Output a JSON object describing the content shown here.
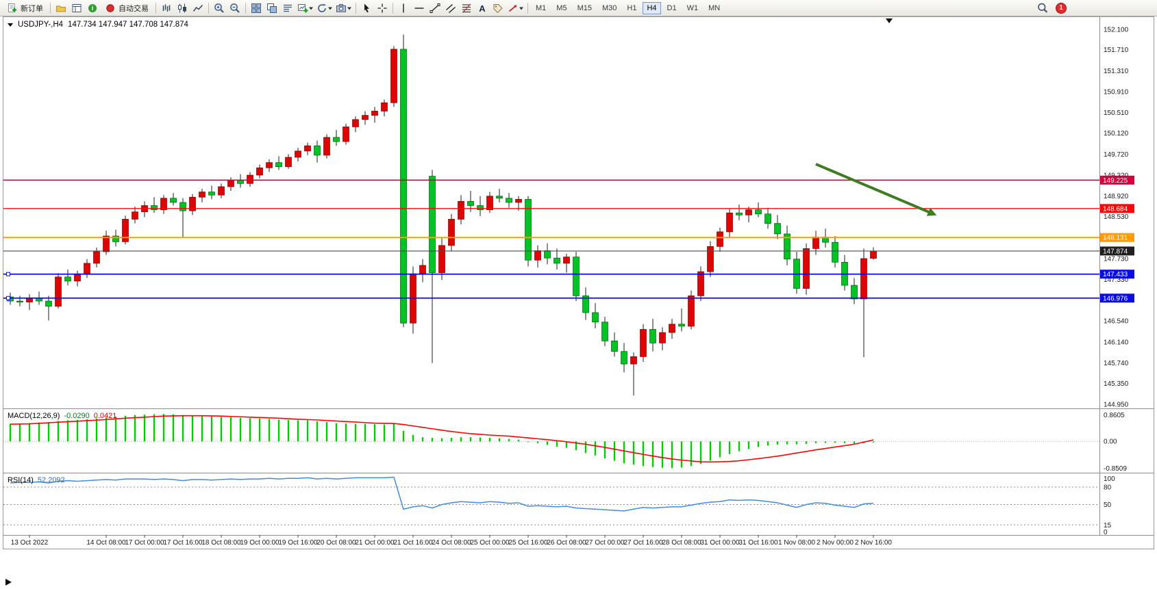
{
  "toolbar": {
    "buttons": [
      {
        "name": "new-order-button",
        "icon": "new-order",
        "label": "新订单"
      },
      {
        "type": "sep"
      },
      {
        "name": "profile-button",
        "icon": "profile"
      },
      {
        "name": "data-window-button",
        "icon": "data-window"
      },
      {
        "name": "info-button",
        "icon": "info"
      },
      {
        "name": "auto-trading-button",
        "icon": "auto-trading",
        "label": "自动交易"
      },
      {
        "type": "sep"
      },
      {
        "name": "bar-chart-button",
        "icon": "bar-chart"
      },
      {
        "name": "candlestick-chart-button",
        "icon": "candlestick"
      },
      {
        "name": "line-chart-button",
        "icon": "line-chart"
      },
      {
        "type": "sep"
      },
      {
        "name": "zoom-in-button",
        "icon": "zoom-in"
      },
      {
        "name": "zoom-out-button",
        "icon": "zoom-out"
      },
      {
        "type": "sep"
      },
      {
        "name": "tile-windows-button",
        "icon": "tile-windows"
      },
      {
        "name": "cascade-windows-button",
        "icon": "cascade"
      },
      {
        "name": "arrange-windows-button",
        "icon": "arrange"
      },
      {
        "name": "new-chart-button",
        "icon": "new-chart",
        "caret": true
      },
      {
        "name": "profiles-button",
        "icon": "cycle",
        "caret": true
      },
      {
        "name": "snapshot-button",
        "icon": "snapshot",
        "caret": true
      },
      {
        "type": "sep"
      },
      {
        "name": "cursor-button",
        "icon": "cursor"
      },
      {
        "name": "crosshair-button",
        "icon": "crosshair"
      },
      {
        "type": "sep"
      },
      {
        "name": "vertical-line-button",
        "icon": "vertical-line"
      },
      {
        "name": "horizontal-line-button",
        "icon": "horizontal-line"
      },
      {
        "name": "trendline-button",
        "icon": "trendline"
      },
      {
        "name": "equidistant-channel-button",
        "icon": "channel"
      },
      {
        "name": "fibonacci-button",
        "icon": "fibonacci"
      },
      {
        "name": "text-button",
        "icon": "text"
      },
      {
        "name": "text-label-button",
        "icon": "label"
      },
      {
        "name": "arrows-button",
        "icon": "arrows",
        "caret": true
      },
      {
        "type": "sep"
      },
      {
        "name": "timeframe-m1",
        "tf": "M1"
      },
      {
        "name": "timeframe-m5",
        "tf": "M5"
      },
      {
        "name": "timeframe-m15",
        "tf": "M15"
      },
      {
        "name": "timeframe-m30",
        "tf": "M30"
      },
      {
        "name": "timeframe-h1",
        "tf": "H1"
      },
      {
        "name": "timeframe-h4",
        "tf": "H4",
        "active": true
      },
      {
        "name": "timeframe-d1",
        "tf": "D1"
      },
      {
        "name": "timeframe-w1",
        "tf": "W1"
      },
      {
        "name": "timeframe-mn",
        "tf": "MN"
      }
    ],
    "right": [
      {
        "name": "search-button",
        "icon": "search"
      },
      {
        "name": "notification-badge",
        "label": "1"
      }
    ]
  },
  "symbol_header": {
    "symbol_period": "USDJPY-,H4",
    "ohlc": "147.734 147.947 147.708 147.874"
  },
  "indicators": {
    "macd": {
      "name": "MACD(12,26,9)",
      "value_main": "-0.0290",
      "value_signal": "0.0421",
      "scale_labels": [
        "0.8605",
        "0.00",
        "-0.8509"
      ]
    },
    "rsi": {
      "name": "RSI(14)",
      "value": "52.2092",
      "scale": [
        {
          "label": "100",
          "value": 100
        },
        {
          "label": "80",
          "value": 80
        },
        {
          "label": "50",
          "value": 50
        },
        {
          "label": "15",
          "value": 15
        },
        {
          "label": "0",
          "value": 0
        }
      ],
      "levels": [
        80,
        50,
        15
      ]
    }
  },
  "price_axis": {
    "labels": [
      "152.100",
      "151.710",
      "151.310",
      "150.910",
      "150.510",
      "150.120",
      "149.720",
      "149.320",
      "148.920",
      "148.530",
      "148.130",
      "147.730",
      "147.330",
      "146.940",
      "146.540",
      "146.140",
      "145.740",
      "145.350",
      "144.950"
    ]
  },
  "levels": [
    {
      "value": 149.225,
      "label": "149.225",
      "color": "#d1003c",
      "width": 1.6
    },
    {
      "value": 148.684,
      "label": "148.684",
      "color": "#f40808",
      "width": 1.4
    },
    {
      "value": 148.131,
      "label": "148.131",
      "color": "#ff9c00",
      "width": 2
    },
    {
      "value": 147.874,
      "label": "147.874",
      "color": "#4a4a4a",
      "badge": "#1f1f1f",
      "width": 1.2
    },
    {
      "value": 147.433,
      "label": "147.433",
      "color": "#0a0ae6",
      "width": 1.8,
      "handles": true
    },
    {
      "value": 146.976,
      "label": "146.976",
      "color": "#0a0ae6",
      "width": 1.8,
      "handles": true
    }
  ],
  "time_axis": {
    "labels": [
      {
        "text": "13 Oct 2022",
        "index": 2
      },
      {
        "text": "14 Oct 08:00",
        "index": 10
      },
      {
        "text": "17 Oct 00:00",
        "index": 14
      },
      {
        "text": "17 Oct 16:00",
        "index": 18
      },
      {
        "text": "18 Oct 08:00",
        "index": 22
      },
      {
        "text": "19 Oct 00:00",
        "index": 26
      },
      {
        "text": "19 Oct 16:00",
        "index": 30
      },
      {
        "text": "20 Oct 08:00",
        "index": 34
      },
      {
        "text": "21 Oct 00:00",
        "index": 38
      },
      {
        "text": "21 Oct 16:00",
        "index": 42
      },
      {
        "text": "24 Oct 08:00",
        "index": 46
      },
      {
        "text": "25 Oct 00:00",
        "index": 50
      },
      {
        "text": "25 Oct 16:00",
        "index": 54
      },
      {
        "text": "26 Oct 08:00",
        "index": 58
      },
      {
        "text": "27 Oct 00:00",
        "index": 62
      },
      {
        "text": "27 Oct 16:00",
        "index": 66
      },
      {
        "text": "28 Oct 08:00",
        "index": 70
      },
      {
        "text": "31 Oct 00:00",
        "index": 74
      },
      {
        "text": "31 Oct 16:00",
        "index": 78
      },
      {
        "text": "1 Nov 08:00",
        "index": 82
      },
      {
        "text": "2 Nov 00:00",
        "index": 86
      },
      {
        "text": "2 Nov 16:00",
        "index": 90
      }
    ]
  },
  "annotation_arrow": {
    "from_index": 84,
    "from_price": 149.53,
    "to_index": 96,
    "to_price": 148.6,
    "color": "#3c7d22"
  },
  "chart_data": {
    "type": "candlestick",
    "symbol": "USDJPY-",
    "period": "H4",
    "price_range_view": [
      144.9,
      152.28
    ],
    "bull_color": "#e00505",
    "bear_color": "#00c423",
    "wick_color": "#1c1c1c",
    "candles": [
      [
        147.0,
        147.08,
        146.85,
        146.92
      ],
      [
        146.92,
        147.02,
        146.82,
        146.9
      ],
      [
        146.9,
        147.05,
        146.75,
        146.98
      ],
      [
        146.98,
        147.1,
        146.85,
        146.92
      ],
      [
        146.92,
        147.02,
        146.55,
        146.82
      ],
      [
        146.82,
        147.45,
        146.78,
        147.38
      ],
      [
        147.38,
        147.52,
        147.22,
        147.3
      ],
      [
        147.3,
        147.5,
        147.2,
        147.44
      ],
      [
        147.44,
        147.72,
        147.36,
        147.64
      ],
      [
        147.64,
        147.94,
        147.56,
        147.86
      ],
      [
        147.86,
        148.26,
        147.8,
        148.16
      ],
      [
        148.16,
        148.28,
        147.96,
        148.05
      ],
      [
        148.05,
        148.55,
        148.0,
        148.48
      ],
      [
        148.48,
        148.72,
        148.4,
        148.62
      ],
      [
        148.62,
        148.82,
        148.52,
        148.74
      ],
      [
        148.74,
        148.9,
        148.6,
        148.66
      ],
      [
        148.66,
        148.94,
        148.58,
        148.88
      ],
      [
        148.88,
        148.98,
        148.74,
        148.8
      ],
      [
        148.8,
        148.88,
        148.12,
        148.64
      ],
      [
        148.64,
        148.96,
        148.56,
        148.9
      ],
      [
        148.9,
        149.06,
        148.8,
        149.0
      ],
      [
        149.0,
        149.12,
        148.86,
        148.94
      ],
      [
        148.94,
        149.16,
        148.88,
        149.1
      ],
      [
        149.1,
        149.28,
        149.02,
        149.22
      ],
      [
        149.22,
        149.34,
        149.08,
        149.16
      ],
      [
        149.16,
        149.38,
        149.1,
        149.32
      ],
      [
        149.32,
        149.52,
        149.26,
        149.46
      ],
      [
        149.46,
        149.62,
        149.38,
        149.56
      ],
      [
        149.56,
        149.68,
        149.42,
        149.48
      ],
      [
        149.48,
        149.72,
        149.44,
        149.66
      ],
      [
        149.66,
        149.84,
        149.58,
        149.78
      ],
      [
        149.78,
        149.94,
        149.7,
        149.88
      ],
      [
        149.88,
        149.98,
        149.56,
        149.7
      ],
      [
        149.7,
        150.1,
        149.64,
        150.04
      ],
      [
        150.04,
        150.18,
        149.88,
        149.96
      ],
      [
        149.96,
        150.3,
        149.9,
        150.24
      ],
      [
        150.24,
        150.44,
        150.14,
        150.38
      ],
      [
        150.38,
        150.54,
        150.28,
        150.46
      ],
      [
        150.46,
        150.62,
        150.32,
        150.54
      ],
      [
        150.54,
        150.76,
        150.44,
        150.7
      ],
      [
        150.7,
        151.78,
        150.62,
        151.72
      ],
      [
        151.72,
        152.0,
        146.42,
        146.5
      ],
      [
        146.5,
        147.58,
        146.3,
        147.44
      ],
      [
        147.44,
        147.72,
        147.28,
        147.6
      ],
      [
        149.3,
        149.42,
        145.74,
        147.46
      ],
      [
        147.46,
        148.12,
        147.32,
        147.98
      ],
      [
        147.98,
        148.58,
        147.88,
        148.48
      ],
      [
        148.48,
        148.94,
        148.38,
        148.82
      ],
      [
        148.82,
        149.02,
        148.62,
        148.74
      ],
      [
        148.74,
        148.92,
        148.54,
        148.66
      ],
      [
        148.66,
        149.0,
        148.6,
        148.92
      ],
      [
        148.92,
        149.06,
        148.8,
        148.88
      ],
      [
        148.88,
        148.98,
        148.7,
        148.8
      ],
      [
        148.8,
        148.92,
        148.64,
        148.86
      ],
      [
        148.86,
        148.92,
        147.58,
        147.7
      ],
      [
        147.7,
        147.98,
        147.56,
        147.88
      ],
      [
        147.88,
        148.02,
        147.62,
        147.74
      ],
      [
        147.74,
        147.92,
        147.52,
        147.64
      ],
      [
        147.64,
        147.82,
        147.46,
        147.76
      ],
      [
        147.76,
        147.86,
        146.92,
        147.02
      ],
      [
        147.02,
        147.18,
        146.56,
        146.7
      ],
      [
        146.7,
        146.88,
        146.4,
        146.52
      ],
      [
        146.52,
        146.62,
        146.06,
        146.16
      ],
      [
        146.16,
        146.32,
        145.86,
        145.96
      ],
      [
        145.96,
        146.12,
        145.56,
        145.72
      ],
      [
        145.72,
        145.94,
        145.12,
        145.86
      ],
      [
        145.86,
        146.48,
        145.76,
        146.38
      ],
      [
        146.38,
        146.58,
        145.96,
        146.12
      ],
      [
        146.12,
        146.42,
        145.98,
        146.32
      ],
      [
        146.32,
        146.58,
        146.2,
        146.48
      ],
      [
        146.48,
        146.78,
        146.34,
        146.44
      ],
      [
        146.44,
        147.12,
        146.38,
        147.02
      ],
      [
        147.02,
        147.58,
        146.92,
        147.48
      ],
      [
        147.48,
        148.06,
        147.38,
        147.96
      ],
      [
        147.96,
        148.32,
        147.86,
        148.24
      ],
      [
        148.24,
        148.68,
        148.14,
        148.6
      ],
      [
        148.6,
        148.76,
        148.46,
        148.56
      ],
      [
        148.56,
        148.72,
        148.42,
        148.66
      ],
      [
        148.66,
        148.8,
        148.52,
        148.58
      ],
      [
        148.58,
        148.7,
        148.3,
        148.4
      ],
      [
        148.4,
        148.56,
        148.1,
        148.2
      ],
      [
        148.2,
        148.36,
        147.6,
        147.72
      ],
      [
        147.72,
        147.86,
        147.06,
        147.16
      ],
      [
        147.16,
        148.02,
        147.04,
        147.92
      ],
      [
        147.92,
        148.26,
        147.8,
        148.14
      ],
      [
        148.14,
        148.3,
        147.94,
        148.04
      ],
      [
        148.04,
        148.16,
        147.56,
        147.66
      ],
      [
        147.66,
        147.8,
        147.12,
        147.22
      ],
      [
        147.22,
        147.36,
        146.86,
        146.96
      ],
      [
        146.96,
        147.92,
        145.85,
        147.73
      ],
      [
        147.734,
        147.947,
        147.708,
        147.874
      ]
    ],
    "macd": {
      "histogram_color": "#00cc00",
      "signal_color": "#ff0000",
      "range": [
        -0.8509,
        0.8605
      ],
      "histogram": [
        0.5,
        0.51,
        0.52,
        0.54,
        0.55,
        0.58,
        0.6,
        0.61,
        0.63,
        0.65,
        0.68,
        0.7,
        0.73,
        0.75,
        0.76,
        0.77,
        0.78,
        0.77,
        0.75,
        0.74,
        0.73,
        0.71,
        0.7,
        0.69,
        0.67,
        0.66,
        0.65,
        0.64,
        0.62,
        0.61,
        0.6,
        0.6,
        0.57,
        0.55,
        0.52,
        0.51,
        0.5,
        0.5,
        0.49,
        0.48,
        0.52,
        0.3,
        0.18,
        0.12,
        0.1,
        0.09,
        0.1,
        0.12,
        0.12,
        0.11,
        0.1,
        0.09,
        0.07,
        0.05,
        -0.02,
        -0.05,
        -0.1,
        -0.15,
        -0.18,
        -0.25,
        -0.33,
        -0.4,
        -0.48,
        -0.55,
        -0.62,
        -0.66,
        -0.7,
        -0.73,
        -0.75,
        -0.76,
        -0.74,
        -0.7,
        -0.64,
        -0.55,
        -0.45,
        -0.36,
        -0.28,
        -0.22,
        -0.16,
        -0.12,
        -0.09,
        -0.08,
        -0.08,
        -0.07,
        -0.05,
        -0.04,
        -0.04,
        -0.05,
        -0.06,
        -0.05,
        -0.029
      ],
      "signal": [
        0.49,
        0.495,
        0.5,
        0.515,
        0.53,
        0.545,
        0.56,
        0.575,
        0.59,
        0.605,
        0.62,
        0.64,
        0.66,
        0.675,
        0.69,
        0.705,
        0.72,
        0.725,
        0.73,
        0.73,
        0.73,
        0.725,
        0.72,
        0.71,
        0.7,
        0.69,
        0.68,
        0.67,
        0.66,
        0.645,
        0.63,
        0.62,
        0.61,
        0.595,
        0.58,
        0.565,
        0.55,
        0.535,
        0.52,
        0.515,
        0.51,
        0.48,
        0.44,
        0.4,
        0.36,
        0.32,
        0.28,
        0.25,
        0.22,
        0.2,
        0.18,
        0.165,
        0.15,
        0.125,
        0.1,
        0.075,
        0.05,
        0.02,
        -0.01,
        -0.045,
        -0.08,
        -0.125,
        -0.17,
        -0.22,
        -0.27,
        -0.32,
        -0.37,
        -0.415,
        -0.46,
        -0.5,
        -0.53,
        -0.555,
        -0.58,
        -0.585,
        -0.58,
        -0.57,
        -0.55,
        -0.52,
        -0.49,
        -0.455,
        -0.42,
        -0.375,
        -0.33,
        -0.285,
        -0.24,
        -0.2,
        -0.16,
        -0.12,
        -0.08,
        -0.02,
        0.0421
      ]
    },
    "rsi": {
      "color": "#3e8ede",
      "range": [
        0,
        100
      ],
      "values": [
        87,
        88,
        88,
        89,
        87,
        90,
        91,
        90,
        91,
        92,
        93,
        92,
        94,
        94,
        94,
        93,
        94,
        93,
        91,
        93,
        93,
        92,
        93,
        94,
        93,
        94,
        94,
        95,
        94,
        95,
        95,
        96,
        94,
        95,
        94,
        95,
        96,
        96,
        96,
        96,
        97,
        42,
        46,
        48,
        44,
        50,
        53,
        55,
        54,
        53,
        55,
        54,
        52,
        53,
        47,
        48,
        47,
        46,
        47,
        44,
        43,
        42,
        41,
        40,
        39,
        42,
        45,
        44,
        45,
        46,
        46,
        49,
        52,
        54,
        55,
        58,
        57,
        58,
        57,
        55,
        53,
        49,
        45,
        50,
        53,
        52,
        49,
        47,
        45,
        51,
        52.2
      ]
    }
  }
}
